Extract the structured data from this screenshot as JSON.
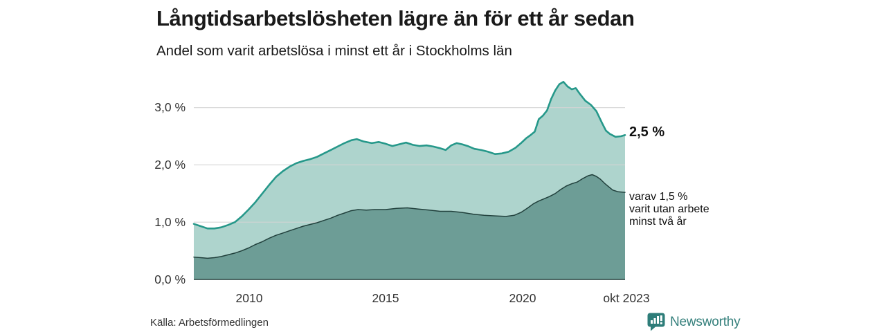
{
  "header": {
    "title": "Långtidsarbetslösheten lägre än för ett år sedan",
    "subtitle": "Andel som varit arbetslösa i minst ett år i Stockholms län"
  },
  "annotations": {
    "latest_total": "2,5 %",
    "latest_two_years_line1": "varav 1,5 %",
    "latest_two_years_line2": "varit utan arbete",
    "latest_two_years_line3": "minst två år"
  },
  "footer": {
    "source": "Källa: Arbetsförmedlingen",
    "brand": "Newsworthy"
  },
  "colors": {
    "accent_line": "#26988a",
    "fill_light": "#aed4cd",
    "fill_dark": "#6d9d96",
    "line_dark": "#21403c",
    "baseline": "#26413d",
    "grid": "#d4d4d4",
    "brand_teal": "#35807c",
    "badge_teal": "#2e7d79"
  },
  "chart_data": {
    "type": "area",
    "title": "Långtidsarbetslösheten lägre än för ett år sedan",
    "subtitle": "Andel som varit arbetslösa i minst ett år i Stockholms län",
    "unit": "%",
    "grid": true,
    "legend_position": "annotations-right",
    "x_axis": {
      "range": [
        2008.0,
        2023.75
      ],
      "ticks": [
        "2010",
        "2015",
        "2020",
        "okt 2023"
      ],
      "tick_years": [
        2010,
        2015,
        2020,
        2023.75
      ]
    },
    "y_axis": {
      "range": [
        0,
        3.67
      ],
      "ticks": [
        "3,0 %",
        "2,0 %",
        "1,0 %",
        "0,0 %"
      ],
      "tick_values": [
        3,
        2,
        1,
        0
      ]
    },
    "series": [
      {
        "name": "Andel arbetslösa minst ett år",
        "end_label": "2,5 %",
        "end_value": 2.5,
        "points": [
          [
            2008.0,
            0.97
          ],
          [
            2008.25,
            0.93
          ],
          [
            2008.5,
            0.89
          ],
          [
            2008.75,
            0.89
          ],
          [
            2009.0,
            0.91
          ],
          [
            2009.25,
            0.95
          ],
          [
            2009.5,
            1.0
          ],
          [
            2009.75,
            1.1
          ],
          [
            2010.0,
            1.22
          ],
          [
            2010.25,
            1.35
          ],
          [
            2010.5,
            1.5
          ],
          [
            2010.75,
            1.65
          ],
          [
            2011.0,
            1.79
          ],
          [
            2011.25,
            1.89
          ],
          [
            2011.5,
            1.97
          ],
          [
            2011.75,
            2.03
          ],
          [
            2012.0,
            2.07
          ],
          [
            2012.25,
            2.1
          ],
          [
            2012.5,
            2.14
          ],
          [
            2012.75,
            2.2
          ],
          [
            2013.0,
            2.26
          ],
          [
            2013.25,
            2.32
          ],
          [
            2013.5,
            2.38
          ],
          [
            2013.75,
            2.43
          ],
          [
            2013.95,
            2.45
          ],
          [
            2014.2,
            2.41
          ],
          [
            2014.5,
            2.38
          ],
          [
            2014.75,
            2.4
          ],
          [
            2015.0,
            2.37
          ],
          [
            2015.25,
            2.33
          ],
          [
            2015.5,
            2.36
          ],
          [
            2015.75,
            2.39
          ],
          [
            2016.0,
            2.35
          ],
          [
            2016.25,
            2.33
          ],
          [
            2016.5,
            2.34
          ],
          [
            2016.75,
            2.32
          ],
          [
            2017.0,
            2.29
          ],
          [
            2017.2,
            2.26
          ],
          [
            2017.4,
            2.34
          ],
          [
            2017.6,
            2.38
          ],
          [
            2017.8,
            2.36
          ],
          [
            2018.0,
            2.33
          ],
          [
            2018.25,
            2.28
          ],
          [
            2018.5,
            2.26
          ],
          [
            2018.75,
            2.23
          ],
          [
            2019.0,
            2.19
          ],
          [
            2019.25,
            2.2
          ],
          [
            2019.5,
            2.23
          ],
          [
            2019.75,
            2.3
          ],
          [
            2019.95,
            2.38
          ],
          [
            2020.15,
            2.47
          ],
          [
            2020.3,
            2.52
          ],
          [
            2020.45,
            2.58
          ],
          [
            2020.6,
            2.8
          ],
          [
            2020.75,
            2.86
          ],
          [
            2020.9,
            2.95
          ],
          [
            2021.05,
            3.15
          ],
          [
            2021.2,
            3.3
          ],
          [
            2021.35,
            3.41
          ],
          [
            2021.5,
            3.45
          ],
          [
            2021.65,
            3.37
          ],
          [
            2021.8,
            3.32
          ],
          [
            2021.95,
            3.34
          ],
          [
            2022.1,
            3.24
          ],
          [
            2022.3,
            3.12
          ],
          [
            2022.5,
            3.05
          ],
          [
            2022.7,
            2.94
          ],
          [
            2022.9,
            2.74
          ],
          [
            2023.05,
            2.6
          ],
          [
            2023.2,
            2.54
          ],
          [
            2023.4,
            2.49
          ],
          [
            2023.6,
            2.5
          ],
          [
            2023.75,
            2.52
          ]
        ]
      },
      {
        "name": "varav utan arbete minst två år",
        "end_label": "varav 1,5 % varit utan arbete minst två år",
        "end_value": 1.5,
        "points": [
          [
            2008.0,
            0.39
          ],
          [
            2008.25,
            0.38
          ],
          [
            2008.5,
            0.37
          ],
          [
            2008.75,
            0.38
          ],
          [
            2009.0,
            0.4
          ],
          [
            2009.25,
            0.43
          ],
          [
            2009.5,
            0.46
          ],
          [
            2009.75,
            0.5
          ],
          [
            2010.0,
            0.55
          ],
          [
            2010.25,
            0.61
          ],
          [
            2010.5,
            0.66
          ],
          [
            2010.75,
            0.72
          ],
          [
            2011.0,
            0.77
          ],
          [
            2011.25,
            0.81
          ],
          [
            2011.5,
            0.85
          ],
          [
            2011.75,
            0.89
          ],
          [
            2012.0,
            0.93
          ],
          [
            2012.25,
            0.96
          ],
          [
            2012.5,
            0.99
          ],
          [
            2012.75,
            1.03
          ],
          [
            2013.0,
            1.07
          ],
          [
            2013.25,
            1.12
          ],
          [
            2013.5,
            1.16
          ],
          [
            2013.75,
            1.2
          ],
          [
            2014.0,
            1.22
          ],
          [
            2014.3,
            1.21
          ],
          [
            2014.6,
            1.22
          ],
          [
            2015.0,
            1.22
          ],
          [
            2015.4,
            1.24
          ],
          [
            2015.8,
            1.25
          ],
          [
            2016.2,
            1.23
          ],
          [
            2016.6,
            1.21
          ],
          [
            2017.0,
            1.19
          ],
          [
            2017.4,
            1.19
          ],
          [
            2017.8,
            1.17
          ],
          [
            2018.2,
            1.14
          ],
          [
            2018.6,
            1.12
          ],
          [
            2019.0,
            1.11
          ],
          [
            2019.4,
            1.1
          ],
          [
            2019.7,
            1.12
          ],
          [
            2019.95,
            1.17
          ],
          [
            2020.2,
            1.25
          ],
          [
            2020.4,
            1.32
          ],
          [
            2020.6,
            1.37
          ],
          [
            2020.8,
            1.41
          ],
          [
            2021.0,
            1.45
          ],
          [
            2021.2,
            1.5
          ],
          [
            2021.4,
            1.57
          ],
          [
            2021.6,
            1.63
          ],
          [
            2021.8,
            1.67
          ],
          [
            2022.0,
            1.7
          ],
          [
            2022.2,
            1.76
          ],
          [
            2022.4,
            1.81
          ],
          [
            2022.55,
            1.83
          ],
          [
            2022.7,
            1.8
          ],
          [
            2022.85,
            1.75
          ],
          [
            2023.0,
            1.68
          ],
          [
            2023.15,
            1.62
          ],
          [
            2023.3,
            1.56
          ],
          [
            2023.5,
            1.53
          ],
          [
            2023.75,
            1.52
          ]
        ]
      }
    ]
  }
}
